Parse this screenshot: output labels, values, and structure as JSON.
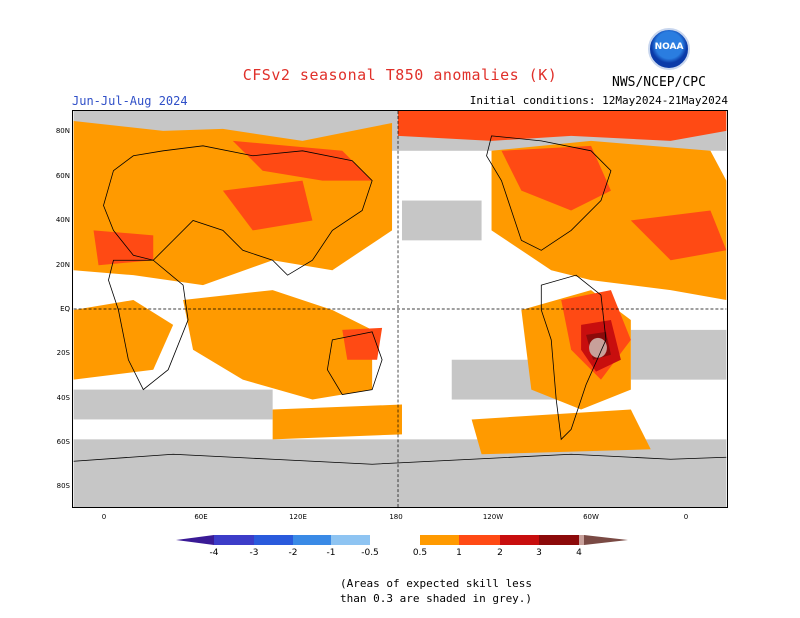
{
  "header": {
    "title": "CFSv2 seasonal T850 anomalies (K)",
    "season": "Jun-Jul-Aug 2024",
    "initial_conditions": "Initial conditions: 12May2024-21May2024",
    "agency": "NWS/NCEP/CPC",
    "logo_text": "NOAA"
  },
  "axes": {
    "lat_labels": [
      "80N",
      "60N",
      "40N",
      "20N",
      "EQ",
      "20S",
      "40S",
      "60S",
      "80S"
    ],
    "lon_labels": [
      "0",
      "60E",
      "120E",
      "180",
      "120W",
      "60W",
      "0"
    ]
  },
  "colorbar": {
    "labels": [
      "-4",
      "-3",
      "-2",
      "-1",
      "-0.5",
      "0.5",
      "1",
      "2",
      "3",
      "4"
    ],
    "colors": {
      "lt_-4": "#3a1a96",
      "-4_-3": "#3c3cc8",
      "-3_-2": "#2a5adc",
      "-2_-1": "#3a8ae6",
      "-1_-0.5": "#8ec4f2",
      "0.5_1": "#ff9a00",
      "1_2": "#ff4a14",
      "2_3": "#c80e0e",
      "3_4": "#8c0a0a",
      "gt_4": "#c8a09a"
    },
    "grey_color": "#c6c6c6"
  },
  "footnote": {
    "line1": "(Areas of expected skill less",
    "line2": "than 0.3 are shaded in grey.)"
  }
}
